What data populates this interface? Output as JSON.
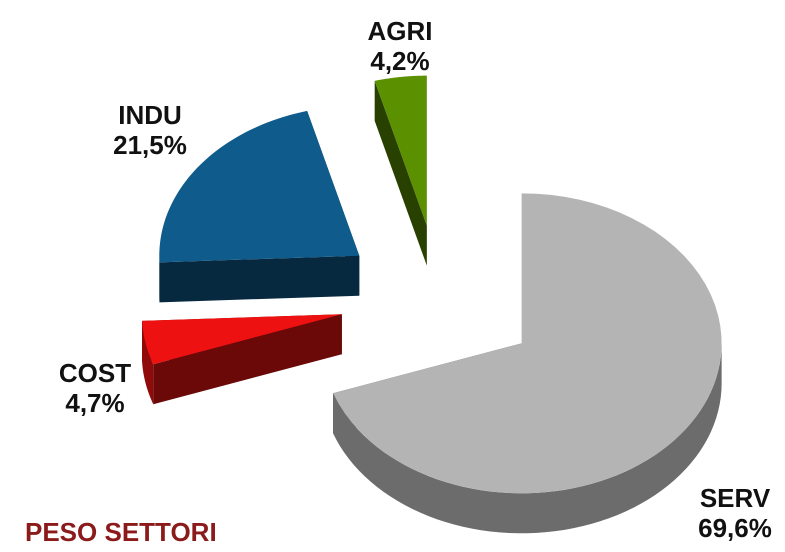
{
  "chart_data": {
    "type": "pie",
    "title": "PESO SETTORI",
    "categories": [
      "SERV",
      "COST",
      "INDU",
      "AGRI"
    ],
    "values": [
      69.6,
      4.7,
      21.5,
      4.2
    ],
    "value_labels": [
      "69,6%",
      "4,7%",
      "21,5%",
      "4,2%"
    ],
    "colors": [
      "#b4b4b4",
      "#ee1111",
      "#0f5c8c",
      "#5b9100"
    ]
  }
}
